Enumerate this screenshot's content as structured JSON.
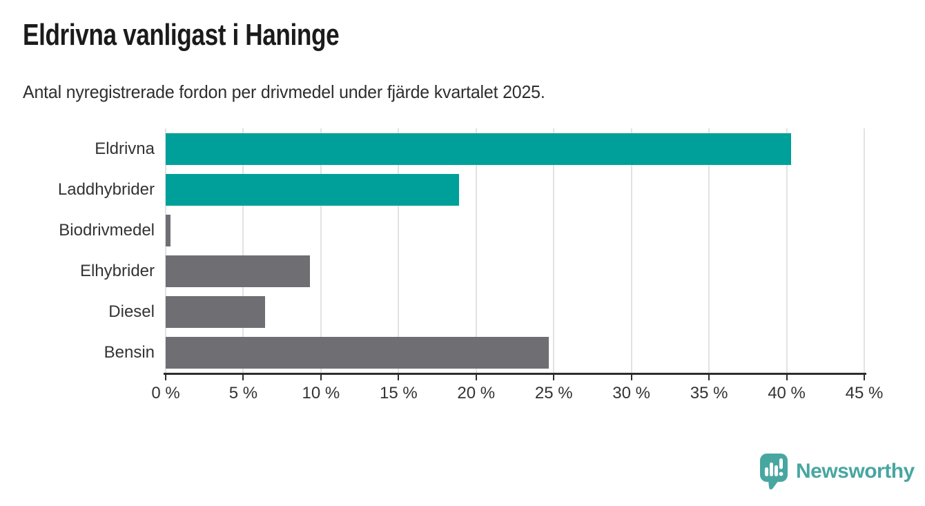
{
  "header": {
    "title": "Eldrivna vanligast i Haninge",
    "subtitle": "Antal nyregistrerade fordon per drivmedel under fjärde kvartalet 2025."
  },
  "chart_data": {
    "type": "bar",
    "orientation": "horizontal",
    "title": "Eldrivna vanligast i Haninge",
    "subtitle": "Antal nyregistrerade fordon per drivmedel under fjärde kvartalet 2025.",
    "categories": [
      "Eldrivna",
      "Laddhybrider",
      "Biodrivmedel",
      "Elhybrider",
      "Diesel",
      "Bensin"
    ],
    "values": [
      40.3,
      18.9,
      0.3,
      9.3,
      6.4,
      24.7
    ],
    "unit": "%",
    "bar_colors": [
      "#00A09A",
      "#00A09A",
      "#6E6E73",
      "#6E6E73",
      "#6E6E73",
      "#6E6E73"
    ],
    "xlabel": "",
    "ylabel": "",
    "xlim": [
      0,
      45
    ],
    "x_ticks": [
      0,
      5,
      10,
      15,
      20,
      25,
      30,
      35,
      40,
      45
    ],
    "x_tick_labels": [
      "0 %",
      "5 %",
      "10 %",
      "15 %",
      "20 %",
      "25 %",
      "30 %",
      "35 %",
      "40 %",
      "45 %"
    ],
    "grid": "vertical-light",
    "legend": "none"
  },
  "branding": {
    "logo_text": "Newsworthy",
    "logo_color": "#48A6A1"
  },
  "colors": {
    "accent_teal": "#00A09A",
    "bar_gray": "#6E6E73",
    "axis": "#2d2d2d",
    "gridline": "#e2e2e2",
    "text_dark": "#1b1b1b",
    "text_body": "#333333"
  }
}
